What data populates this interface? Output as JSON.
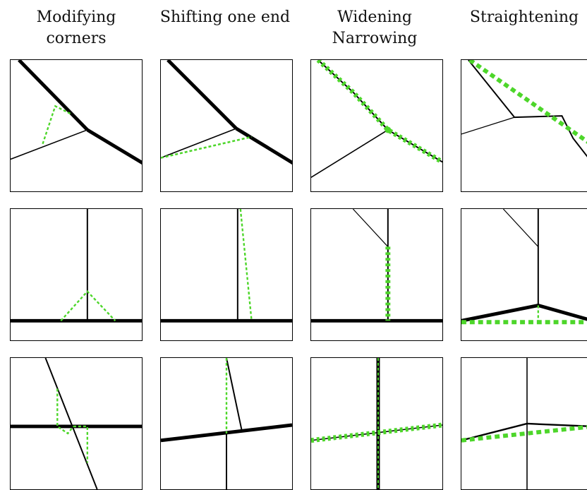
{
  "headers": [
    {
      "line1": "Modifying",
      "line2": "corners"
    },
    {
      "line1": "Shifting one end",
      "line2": ""
    },
    {
      "line1": "Widening",
      "line2": "Narrowing"
    },
    {
      "line1": "Straightening",
      "line2": ""
    }
  ],
  "colors": {
    "edge": "#000000",
    "highlight": "#4dd62a"
  }
}
